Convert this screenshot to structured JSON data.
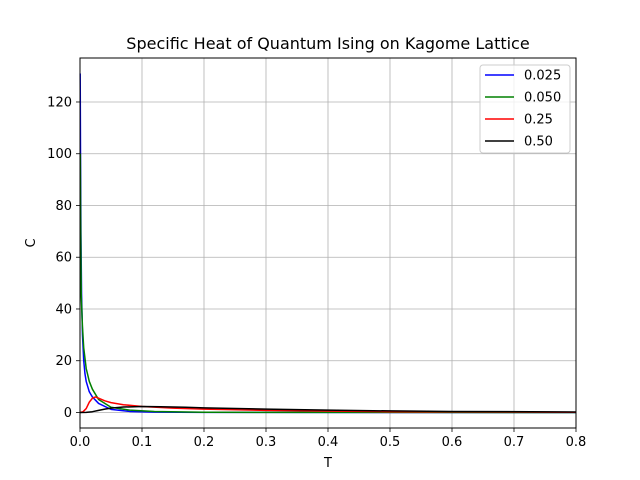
{
  "chart_data": {
    "type": "line",
    "title": "Specific Heat of Quantum Ising on Kagome Lattice",
    "xlabel": "T",
    "ylabel": "C",
    "xlim": [
      0,
      0.8
    ],
    "ylim": [
      -6,
      137
    ],
    "xticks": [
      "0.0",
      "0.1",
      "0.2",
      "0.3",
      "0.4",
      "0.5",
      "0.6",
      "0.7",
      "0.8"
    ],
    "yticks": [
      "0",
      "20",
      "40",
      "60",
      "80",
      "100",
      "120"
    ],
    "grid": true,
    "legend_position": "top-right",
    "series": [
      {
        "name": "0.025",
        "color": "#0000ff",
        "x": [
          0.0003,
          0.0008,
          0.0015,
          0.0025,
          0.004,
          0.006,
          0.008,
          0.01,
          0.015,
          0.02,
          0.03,
          0.05,
          0.08,
          0.12,
          0.2,
          0.3,
          0.5,
          0.8
        ],
        "y": [
          131,
          100,
          70,
          46,
          30,
          20,
          15,
          12,
          8,
          6,
          3.5,
          1.2,
          0.4,
          0.15,
          0.05,
          0.02,
          0.01,
          0.0
        ]
      },
      {
        "name": "0.050",
        "color": "#008000",
        "x": [
          0.0005,
          0.001,
          0.002,
          0.004,
          0.006,
          0.01,
          0.015,
          0.02,
          0.03,
          0.05,
          0.08,
          0.12,
          0.2,
          0.3,
          0.5,
          0.8
        ],
        "y": [
          100,
          75,
          45,
          33,
          25,
          17,
          12,
          9,
          5,
          2,
          0.9,
          0.4,
          0.1,
          0.05,
          0.02,
          0.0
        ]
      },
      {
        "name": "0.25",
        "color": "#ff0000",
        "x": [
          0.0,
          0.005,
          0.01,
          0.015,
          0.02,
          0.025,
          0.03,
          0.04,
          0.05,
          0.07,
          0.1,
          0.15,
          0.2,
          0.3,
          0.5,
          0.8
        ],
        "y": [
          0,
          0.3,
          1.5,
          4,
          5.5,
          6,
          5.5,
          4.5,
          3.8,
          3,
          2.3,
          1.7,
          1.3,
          0.8,
          0.3,
          0.1
        ]
      },
      {
        "name": "0.50",
        "color": "#000000",
        "x": [
          0.0,
          0.01,
          0.02,
          0.03,
          0.04,
          0.05,
          0.07,
          0.1,
          0.13,
          0.17,
          0.2,
          0.3,
          0.4,
          0.5,
          0.6,
          0.8
        ],
        "y": [
          0,
          0.05,
          0.3,
          0.8,
          1.3,
          1.7,
          2.1,
          2.3,
          2.2,
          2.0,
          1.8,
          1.3,
          0.9,
          0.6,
          0.4,
          0.2
        ]
      }
    ]
  }
}
